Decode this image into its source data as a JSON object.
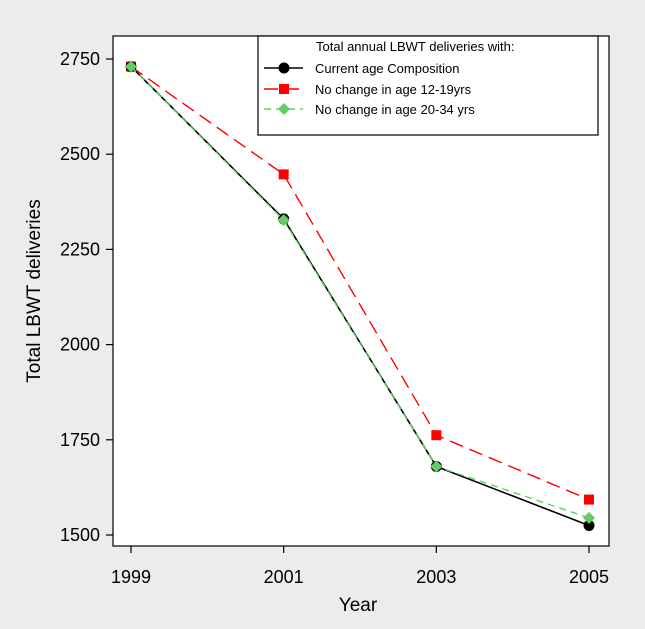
{
  "chart_data": {
    "type": "line",
    "xlabel": "Year",
    "ylabel": "Total LBWT deliveries",
    "x": [
      1999,
      2001,
      2003,
      2005
    ],
    "xticks": [
      "1999",
      "2001",
      "2003",
      "2005"
    ],
    "yticks": [
      1500,
      1750,
      2000,
      2250,
      2500,
      2750
    ],
    "xlim": [
      1999,
      2005
    ],
    "ylim": [
      1500,
      2750
    ],
    "grid": false,
    "legend_position": "top-right",
    "legend_title": "Total annual LBWT deliveries with:",
    "series": [
      {
        "name": "Current age Composition",
        "values": [
          2730,
          2330,
          1680,
          1525
        ],
        "color": "#000000",
        "marker": "circle",
        "dash": "solid"
      },
      {
        "name": "No change in age 12-19yrs",
        "values": [
          2730,
          2447,
          1762,
          1593
        ],
        "color": "#ff0000",
        "marker": "square",
        "dash": "long-dash"
      },
      {
        "name": "No change in age 20-34 yrs",
        "values": [
          2730,
          2327,
          1680,
          1545
        ],
        "color": "#66cc66",
        "marker": "diamond",
        "dash": "dash"
      }
    ]
  }
}
